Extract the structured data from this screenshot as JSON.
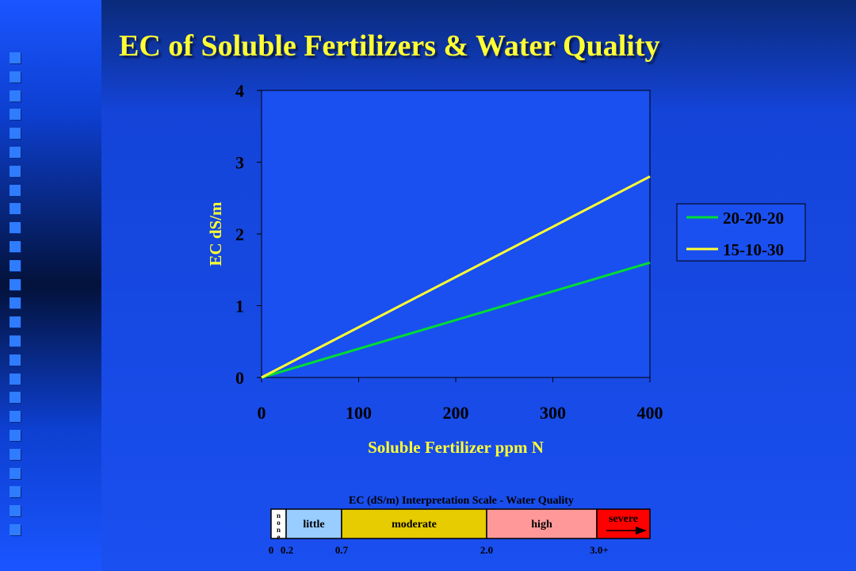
{
  "title": "EC of Soluble Fertilizers & Water Quality",
  "colors": {
    "title": "#ffff33",
    "series_green": "#00dd33",
    "series_yellow": "#ffff33",
    "axis_text": "#000000",
    "label_yellow": "#ffff33"
  },
  "chart_data": {
    "type": "line",
    "xlabel": "Soluble Fertilizer ppm N",
    "ylabel": "EC dS/m",
    "xlim": [
      0,
      400
    ],
    "ylim": [
      0,
      4
    ],
    "xticks": [
      "0",
      "100",
      "200",
      "300",
      "400"
    ],
    "yticks": [
      "0",
      "1",
      "2",
      "3",
      "4"
    ],
    "grid": false,
    "legend_position": "right",
    "series": [
      {
        "name": "20-20-20",
        "x": [
          0,
          400
        ],
        "y": [
          0,
          1.6
        ],
        "color": "#00dd33"
      },
      {
        "name": "15-10-30",
        "x": [
          0,
          400
        ],
        "y": [
          0,
          2.8
        ],
        "color": "#ffff33"
      }
    ]
  },
  "scale": {
    "title": "EC (dS/m) Interpretation Scale - Water Quality",
    "segments": [
      {
        "label": "none",
        "vertical": true,
        "start": 0,
        "end": 0.2,
        "color": "#ffffff"
      },
      {
        "label": "little",
        "start": 0.2,
        "end": 0.7,
        "color": "#99ccff"
      },
      {
        "label": "moderate",
        "start": 0.7,
        "end": 2.0,
        "color": "#e6cc00"
      },
      {
        "label": "high",
        "start": 2.0,
        "end": 3.0,
        "color": "#ff9999"
      },
      {
        "label": "severe",
        "start": 3.0,
        "end": null,
        "color": "#ff0000"
      }
    ],
    "tick_labels": [
      "0",
      "0.2",
      "0.7",
      "2.0",
      "3.0+"
    ]
  }
}
